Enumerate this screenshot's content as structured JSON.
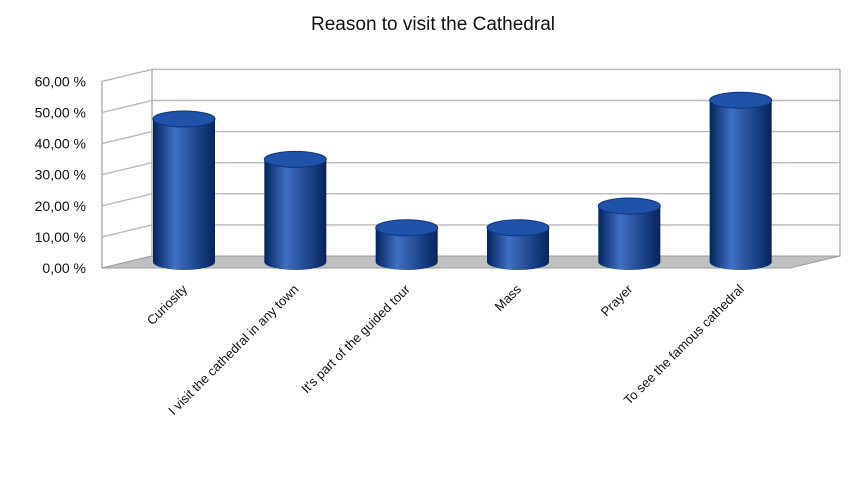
{
  "chart_data": {
    "type": "bar",
    "title": "Reason to visit the Cathedral",
    "categories": [
      "Curiosity",
      "I visit the cathedral in any town",
      "It's part of the guided tour",
      "Mass",
      "Prayer",
      "To see the famous cathedral"
    ],
    "values": [
      46,
      33,
      11,
      11,
      18,
      52
    ],
    "y_ticks": [
      "0,00 %",
      "10,00 %",
      "20,00 %",
      "30,00 %",
      "40,00 %",
      "50,00 %",
      "60,00 %"
    ],
    "ylim": [
      0,
      60
    ],
    "unit": "%",
    "grid": true,
    "style": "3d-cylinder",
    "colors": {
      "bar": "#0a3d91",
      "bar_light": "#3f6fc4",
      "bar_dark": "#04245d",
      "floor": "#c0c0c0",
      "grid": "#b9b9b9"
    }
  }
}
